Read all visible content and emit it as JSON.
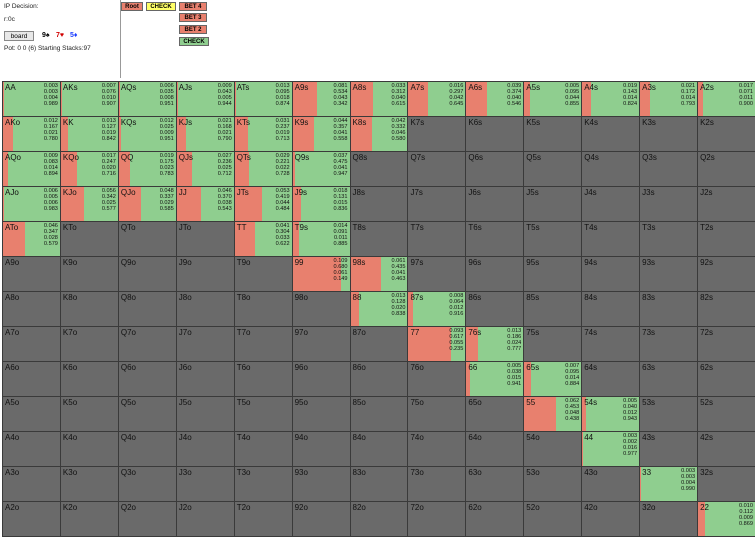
{
  "header": {
    "title": "IP Decision:",
    "line2": "r:0c",
    "board_button": "board",
    "cards": [
      {
        "text": "9♠",
        "color": "#000000"
      },
      {
        "text": "7♥",
        "color": "#d00000"
      },
      {
        "text": "5♦",
        "color": "#1a3cff"
      }
    ],
    "pot_line": "Pot: 0 0 (6) Starting Stacks:97"
  },
  "tree": {
    "root": "Root",
    "check": "CHECK",
    "bet4": "BET 4",
    "bet3": "BET 3",
    "bet2": "BET 2",
    "check2": "CHECK"
  },
  "colors": {
    "green": "#8fce8f",
    "red": "#e8806e",
    "gray": "#6a6a6a",
    "yellow": "#ffff66"
  },
  "grid": [
    [
      {
        "name": "AA",
        "red": 0.005,
        "vals": [
          "0.003",
          "0.003",
          "0.004",
          "0.989"
        ]
      },
      {
        "name": "AKs",
        "red": 0.007,
        "vals": [
          "0.007",
          "0.076",
          "0.010",
          "0.907"
        ]
      },
      {
        "name": "AQs",
        "red": 0.006,
        "vals": [
          "0.006",
          "0.035",
          "0.008",
          "0.951"
        ]
      },
      {
        "name": "AJs",
        "red": 0.005,
        "vals": [
          "0.009",
          "0.043",
          "0.005",
          "0.944"
        ]
      },
      {
        "name": "ATs",
        "red": 0.013,
        "vals": [
          "0.013",
          "0.095",
          "0.018",
          "0.874"
        ]
      },
      {
        "name": "A9s",
        "red": 0.42,
        "vals": [
          "0.081",
          "0.534",
          "0.043",
          "0.342"
        ]
      },
      {
        "name": "A8s",
        "red": 0.4,
        "vals": [
          "0.033",
          "0.312",
          "0.040",
          "0.615"
        ]
      },
      {
        "name": "A7s",
        "red": 0.35,
        "vals": [
          "0.016",
          "0.297",
          "0.042",
          "0.645"
        ]
      },
      {
        "name": "A6s",
        "red": 0.37,
        "vals": [
          "0.039",
          "0.374",
          "0.040",
          "0.546"
        ]
      },
      {
        "name": "A5s",
        "red": 0.1,
        "vals": [
          "0.005",
          "0.095",
          "0.044",
          "0.855"
        ]
      },
      {
        "name": "A4s",
        "red": 0.16,
        "vals": [
          "0.019",
          "0.143",
          "0.014",
          "0.824"
        ]
      },
      {
        "name": "A3s",
        "red": 0.18,
        "vals": [
          "0.021",
          "0.172",
          "0.014",
          "0.793"
        ]
      },
      {
        "name": "A2s",
        "red": 0.08,
        "vals": [
          "0.017",
          "0.071",
          "0.011",
          "0.900"
        ]
      }
    ],
    [
      {
        "name": "AKo",
        "red": 0.17,
        "vals": [
          "0.012",
          "0.167",
          "0.021",
          "0.780"
        ]
      },
      {
        "name": "KK",
        "red": 0.13,
        "vals": [
          "0.013",
          "0.127",
          "0.019",
          "0.842"
        ]
      },
      {
        "name": "KQs",
        "red": 0.035,
        "vals": [
          "0.012",
          "0.025",
          "0.009",
          "0.951"
        ]
      },
      {
        "name": "KJs",
        "red": 0.17,
        "vals": [
          "0.021",
          "0.168",
          "0.021",
          "0.790"
        ]
      },
      {
        "name": "KTs",
        "red": 0.24,
        "vals": [
          "0.031",
          "0.237",
          "0.019",
          "0.713"
        ]
      },
      {
        "name": "K9s",
        "red": 0.38,
        "vals": [
          "0.044",
          "0.357",
          "0.041",
          "0.558"
        ]
      },
      {
        "name": "K8s",
        "red": 0.37,
        "vals": [
          "0.042",
          "0.332",
          "0.046",
          "0.580"
        ]
      },
      {
        "name": "K7s",
        "empty": true
      },
      {
        "name": "K6s",
        "empty": true
      },
      {
        "name": "K5s",
        "empty": true
      },
      {
        "name": "K4s",
        "empty": true
      },
      {
        "name": "K3s",
        "empty": true
      },
      {
        "name": "K2s",
        "empty": true
      }
    ],
    [
      {
        "name": "AQo",
        "red": 0.09,
        "vals": [
          "0.009",
          "0.083",
          "0.014",
          "0.894"
        ]
      },
      {
        "name": "KQo",
        "red": 0.29,
        "vals": [
          "0.017",
          "0.247",
          "0.020",
          "0.716"
        ]
      },
      {
        "name": "QQ",
        "red": 0.19,
        "vals": [
          "0.019",
          "0.175",
          "0.023",
          "0.783"
        ]
      },
      {
        "name": "QJs",
        "red": 0.26,
        "vals": [
          "0.027",
          "0.236",
          "0.025",
          "0.712"
        ]
      },
      {
        "name": "QTs",
        "red": 0.25,
        "vals": [
          "0.029",
          "0.221",
          "0.022",
          "0.728"
        ]
      },
      {
        "name": "Q9s",
        "red": 0.05,
        "vals": [
          "0.037",
          "0.475",
          "0.041",
          "0.947"
        ]
      },
      {
        "name": "Q8s",
        "empty": true
      },
      {
        "name": "Q7s",
        "empty": true
      },
      {
        "name": "Q6s",
        "empty": true
      },
      {
        "name": "Q5s",
        "empty": true
      },
      {
        "name": "Q4s",
        "empty": true
      },
      {
        "name": "Q3s",
        "empty": true
      },
      {
        "name": "Q2s",
        "empty": true
      }
    ],
    [
      {
        "name": "AJo",
        "red": 0.01,
        "vals": [
          "0.006",
          "0.005",
          "0.006",
          "0.983"
        ]
      },
      {
        "name": "KJo",
        "red": 0.4,
        "vals": [
          "0.056",
          "0.342",
          "0.025",
          "0.577"
        ]
      },
      {
        "name": "QJo",
        "red": 0.39,
        "vals": [
          "0.048",
          "0.337",
          "0.029",
          "0.585"
        ]
      },
      {
        "name": "JJ",
        "red": 0.42,
        "vals": [
          "0.046",
          "0.370",
          "0.038",
          "0.543"
        ]
      },
      {
        "name": "JTs",
        "red": 0.48,
        "vals": [
          "0.053",
          "0.419",
          "0.044",
          "0.484"
        ]
      },
      {
        "name": "J9s",
        "red": 0.14,
        "vals": [
          "0.018",
          "0.131",
          "0.015",
          "0.836"
        ]
      },
      {
        "name": "J8s",
        "empty": true
      },
      {
        "name": "J7s",
        "empty": true
      },
      {
        "name": "J6s",
        "empty": true
      },
      {
        "name": "J5s",
        "empty": true
      },
      {
        "name": "J4s",
        "empty": true
      },
      {
        "name": "J3s",
        "empty": true
      },
      {
        "name": "J2s",
        "empty": true
      }
    ],
    [
      {
        "name": "ATo",
        "red": 0.38,
        "vals": [
          "0.046",
          "0.347",
          "0.028",
          "0.579"
        ]
      },
      {
        "name": "KTo",
        "empty": true
      },
      {
        "name": "QTo",
        "empty": true
      },
      {
        "name": "JTo",
        "empty": true
      },
      {
        "name": "TT",
        "red": 0.36,
        "vals": [
          "0.041",
          "0.304",
          "0.033",
          "0.622"
        ]
      },
      {
        "name": "T9s",
        "red": 0.11,
        "vals": [
          "0.014",
          "0.091",
          "0.011",
          "0.885"
        ]
      },
      {
        "name": "T8s",
        "empty": true
      },
      {
        "name": "T7s",
        "empty": true
      },
      {
        "name": "T6s",
        "empty": true
      },
      {
        "name": "T5s",
        "empty": true
      },
      {
        "name": "T4s",
        "empty": true
      },
      {
        "name": "T3s",
        "empty": true
      },
      {
        "name": "T2s",
        "empty": true
      }
    ],
    [
      {
        "name": "A9o",
        "empty": true
      },
      {
        "name": "K9o",
        "empty": true
      },
      {
        "name": "Q9o",
        "empty": true
      },
      {
        "name": "J9o",
        "empty": true
      },
      {
        "name": "T9o",
        "empty": true
      },
      {
        "name": "99",
        "red": 0.85,
        "vals": [
          "0.109",
          "0.680",
          "0.061",
          "0.149"
        ]
      },
      {
        "name": "98s",
        "red": 0.54,
        "vals": [
          "0.061",
          "0.435",
          "0.041",
          "0.463"
        ]
      },
      {
        "name": "97s",
        "empty": true
      },
      {
        "name": "96s",
        "empty": true
      },
      {
        "name": "95s",
        "empty": true
      },
      {
        "name": "94s",
        "empty": true
      },
      {
        "name": "93s",
        "empty": true
      },
      {
        "name": "92s",
        "empty": true
      }
    ],
    [
      {
        "name": "A8o",
        "empty": true
      },
      {
        "name": "K8o",
        "empty": true
      },
      {
        "name": "Q8o",
        "empty": true
      },
      {
        "name": "J8o",
        "empty": true
      },
      {
        "name": "T8o",
        "empty": true
      },
      {
        "name": "98o",
        "empty": true
      },
      {
        "name": "88",
        "red": 0.15,
        "vals": [
          "0.013",
          "0.128",
          "0.020",
          "0.838"
        ]
      },
      {
        "name": "87s",
        "red": 0.08,
        "vals": [
          "0.008",
          "0.064",
          "0.012",
          "0.916"
        ]
      },
      {
        "name": "86s",
        "empty": true
      },
      {
        "name": "85s",
        "empty": true
      },
      {
        "name": "84s",
        "empty": true
      },
      {
        "name": "83s",
        "empty": true
      },
      {
        "name": "82s",
        "empty": true
      }
    ],
    [
      {
        "name": "A7o",
        "empty": true
      },
      {
        "name": "K7o",
        "empty": true
      },
      {
        "name": "Q7o",
        "empty": true
      },
      {
        "name": "J7o",
        "empty": true
      },
      {
        "name": "T7o",
        "empty": true
      },
      {
        "name": "97o",
        "empty": true
      },
      {
        "name": "87o",
        "empty": true
      },
      {
        "name": "77",
        "red": 0.75,
        "vals": [
          "0.093",
          "0.617",
          "0.055",
          "0.235"
        ]
      },
      {
        "name": "76s",
        "red": 0.2,
        "vals": [
          "0.013",
          "0.186",
          "0.024",
          "0.777"
        ]
      },
      {
        "name": "75s",
        "empty": true
      },
      {
        "name": "74s",
        "empty": true
      },
      {
        "name": "73s",
        "empty": true
      },
      {
        "name": "72s",
        "empty": true
      }
    ],
    [
      {
        "name": "A6o",
        "empty": true
      },
      {
        "name": "K6o",
        "empty": true
      },
      {
        "name": "Q6o",
        "empty": true
      },
      {
        "name": "J6o",
        "empty": true
      },
      {
        "name": "T6o",
        "empty": true
      },
      {
        "name": "96o",
        "empty": true
      },
      {
        "name": "86o",
        "empty": true
      },
      {
        "name": "76o",
        "empty": true
      },
      {
        "name": "66",
        "red": 0.06,
        "vals": [
          "0.005",
          "0.038",
          "0.015",
          "0.941"
        ]
      },
      {
        "name": "65s",
        "red": 0.11,
        "vals": [
          "0.007",
          "0.095",
          "0.014",
          "0.884"
        ]
      },
      {
        "name": "64s",
        "empty": true
      },
      {
        "name": "63s",
        "empty": true
      },
      {
        "name": "62s",
        "empty": true
      }
    ],
    [
      {
        "name": "A5o",
        "empty": true
      },
      {
        "name": "K5o",
        "empty": true
      },
      {
        "name": "Q5o",
        "empty": true
      },
      {
        "name": "J5o",
        "empty": true
      },
      {
        "name": "T5o",
        "empty": true
      },
      {
        "name": "95o",
        "empty": true
      },
      {
        "name": "85o",
        "empty": true
      },
      {
        "name": "75o",
        "empty": true
      },
      {
        "name": "65o",
        "empty": true
      },
      {
        "name": "55",
        "red": 0.55,
        "vals": [
          "0.062",
          "0.453",
          "0.048",
          "0.438"
        ]
      },
      {
        "name": "54s",
        "red": 0.06,
        "vals": [
          "0.005",
          "0.040",
          "0.012",
          "0.943"
        ]
      },
      {
        "name": "53s",
        "empty": true
      },
      {
        "name": "52s",
        "empty": true
      }
    ],
    [
      {
        "name": "A4o",
        "empty": true
      },
      {
        "name": "K4o",
        "empty": true
      },
      {
        "name": "Q4o",
        "empty": true
      },
      {
        "name": "J4o",
        "empty": true
      },
      {
        "name": "T4o",
        "empty": true
      },
      {
        "name": "94o",
        "empty": true
      },
      {
        "name": "84o",
        "empty": true
      },
      {
        "name": "74o",
        "empty": true
      },
      {
        "name": "64o",
        "empty": true
      },
      {
        "name": "54o",
        "empty": true
      },
      {
        "name": "44",
        "red": 0.02,
        "vals": [
          "0.003",
          "0.002",
          "0.016",
          "0.977"
        ]
      },
      {
        "name": "43s",
        "empty": true
      },
      {
        "name": "42s",
        "empty": true
      }
    ],
    [
      {
        "name": "A3o",
        "empty": true
      },
      {
        "name": "K3o",
        "empty": true
      },
      {
        "name": "Q3o",
        "empty": true
      },
      {
        "name": "J3o",
        "empty": true
      },
      {
        "name": "T3o",
        "empty": true
      },
      {
        "name": "93o",
        "empty": true
      },
      {
        "name": "83o",
        "empty": true
      },
      {
        "name": "73o",
        "empty": true
      },
      {
        "name": "63o",
        "empty": true
      },
      {
        "name": "53o",
        "empty": true
      },
      {
        "name": "43o",
        "empty": true
      },
      {
        "name": "33",
        "red": 0.01,
        "vals": [
          "0.003",
          "0.003",
          "0.004",
          "0.990"
        ]
      },
      {
        "name": "32s",
        "empty": true
      }
    ],
    [
      {
        "name": "A2o",
        "empty": true
      },
      {
        "name": "K2o",
        "empty": true
      },
      {
        "name": "Q2o",
        "empty": true
      },
      {
        "name": "J2o",
        "empty": true
      },
      {
        "name": "T2o",
        "empty": true
      },
      {
        "name": "92o",
        "empty": true
      },
      {
        "name": "82o",
        "empty": true
      },
      {
        "name": "72o",
        "empty": true
      },
      {
        "name": "62o",
        "empty": true
      },
      {
        "name": "52o",
        "empty": true
      },
      {
        "name": "42o",
        "empty": true
      },
      {
        "name": "32o",
        "empty": true
      },
      {
        "name": "22",
        "red": 0.12,
        "vals": [
          "0.010",
          "0.112",
          "0.009",
          "0.869"
        ]
      }
    ]
  ]
}
